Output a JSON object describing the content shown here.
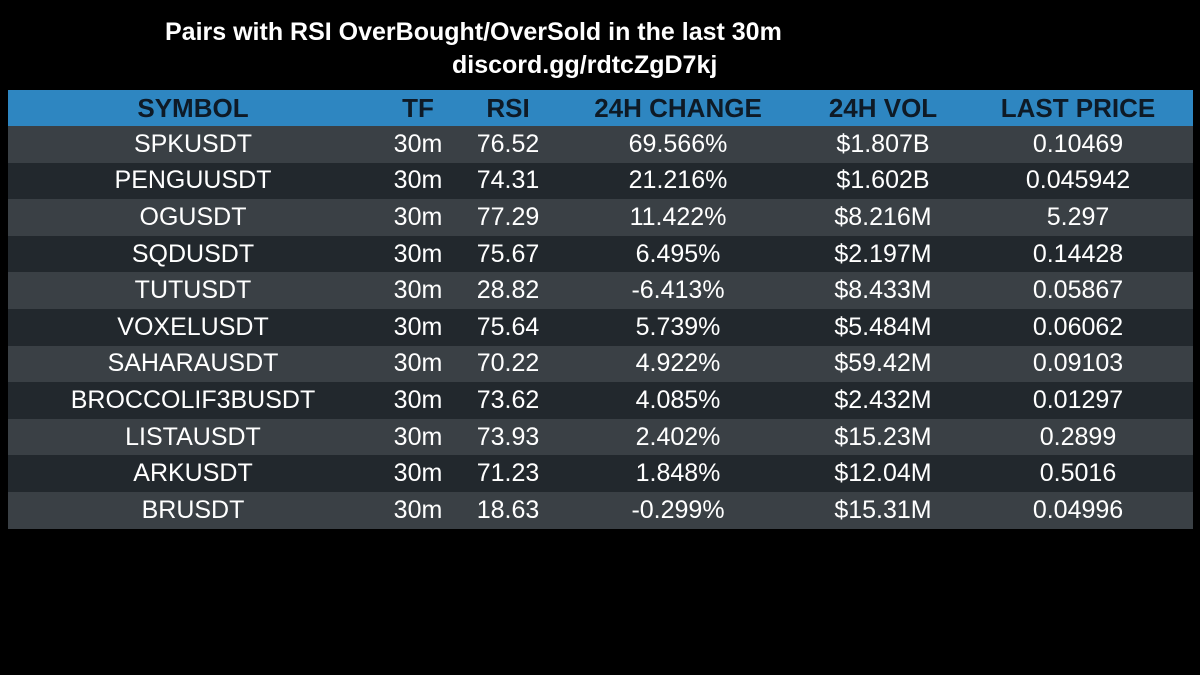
{
  "header": {
    "title": "Pairs with RSI OverBought/OverSold in the last 30m",
    "subtitle": "discord.gg/rdtcZgD7kj"
  },
  "table": {
    "columns": [
      "SYMBOL",
      "TF",
      "RSI",
      "24H CHANGE",
      "24H VOL",
      "LAST PRICE"
    ],
    "rows": [
      [
        "SPKUSDT",
        "30m",
        "76.52",
        "69.566%",
        "$1.807B",
        "0.10469"
      ],
      [
        "PENGUUSDT",
        "30m",
        "74.31",
        "21.216%",
        "$1.602B",
        "0.045942"
      ],
      [
        "OGUSDT",
        "30m",
        "77.29",
        "11.422%",
        "$8.216M",
        "5.297"
      ],
      [
        "SQDUSDT",
        "30m",
        "75.67",
        "6.495%",
        "$2.197M",
        "0.14428"
      ],
      [
        "TUTUSDT",
        "30m",
        "28.82",
        "-6.413%",
        "$8.433M",
        "0.05867"
      ],
      [
        "VOXELUSDT",
        "30m",
        "75.64",
        "5.739%",
        "$5.484M",
        "0.06062"
      ],
      [
        "SAHARAUSDT",
        "30m",
        "70.22",
        "4.922%",
        "$59.42M",
        "0.09103"
      ],
      [
        "BROCCOLIF3BUSDT",
        "30m",
        "73.62",
        "4.085%",
        "$2.432M",
        "0.01297"
      ],
      [
        "LISTAUSDT",
        "30m",
        "73.93",
        "2.402%",
        "$15.23M",
        "0.2899"
      ],
      [
        "ARKUSDT",
        "30m",
        "71.23",
        "1.848%",
        "$12.04M",
        "0.5016"
      ],
      [
        "BRUSDT",
        "30m",
        "18.63",
        "-0.299%",
        "$15.31M",
        "0.04996"
      ]
    ]
  },
  "colors": {
    "header_bg": "#2e86c1",
    "row_light": "#3a4045",
    "row_dark": "#22282d",
    "page_bg": "#000000"
  }
}
